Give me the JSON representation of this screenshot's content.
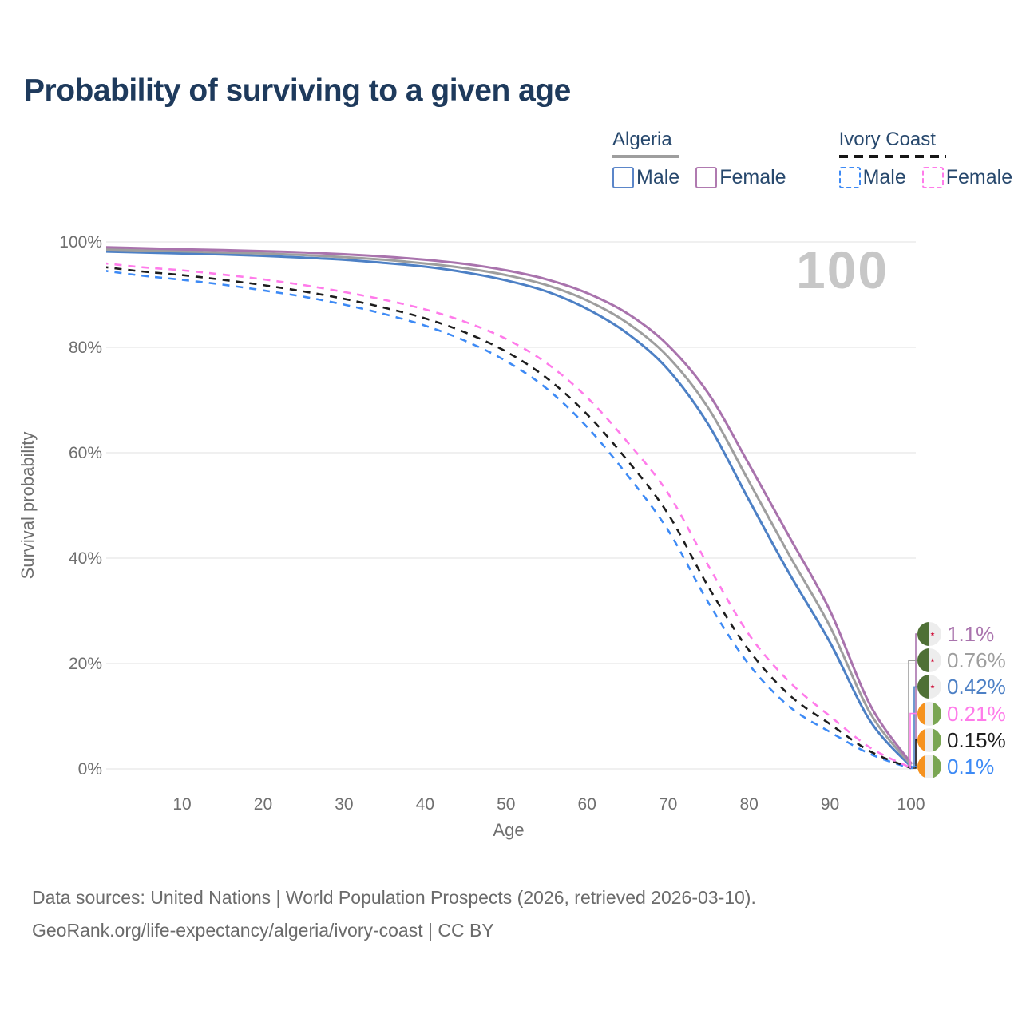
{
  "title": "Probability of surviving to a given age",
  "watermark": "100",
  "legend": {
    "groups": [
      {
        "label": "Algeria",
        "line_style": "solid",
        "items": [
          {
            "label": "Male",
            "color": "#4d80c5"
          },
          {
            "label": "Female",
            "color": "#a973ad"
          }
        ]
      },
      {
        "label": "Ivory Coast",
        "line_style": "dashed",
        "items": [
          {
            "label": "Male",
            "color": "#3d8af5"
          },
          {
            "label": "Female",
            "color": "#ff7bea"
          }
        ]
      }
    ]
  },
  "axes": {
    "y_title": "Survival probability",
    "x_title": "Age",
    "y_ticks": [
      {
        "label": "100%",
        "value": 100
      },
      {
        "label": "80%",
        "value": 80
      },
      {
        "label": "60%",
        "value": 60
      },
      {
        "label": "40%",
        "value": 40
      },
      {
        "label": "20%",
        "value": 20
      },
      {
        "label": "0%",
        "value": 0
      }
    ],
    "x_ticks": [
      {
        "label": "10",
        "value": 10
      },
      {
        "label": "20",
        "value": 20
      },
      {
        "label": "30",
        "value": 30
      },
      {
        "label": "40",
        "value": 40
      },
      {
        "label": "50",
        "value": 50
      },
      {
        "label": "60",
        "value": 60
      },
      {
        "label": "70",
        "value": 70
      },
      {
        "label": "80",
        "value": 80
      },
      {
        "label": "90",
        "value": 90
      },
      {
        "label": "100",
        "value": 100
      }
    ]
  },
  "chart_data": {
    "type": "line",
    "title": "Probability of surviving to a given age",
    "xlabel": "Age",
    "ylabel": "Survival probability",
    "xlim": [
      0,
      100
    ],
    "ylim": [
      0,
      100
    ],
    "grid": true,
    "legend_position": "top-right",
    "x": [
      0,
      5,
      10,
      15,
      20,
      25,
      30,
      35,
      40,
      45,
      50,
      55,
      60,
      65,
      70,
      75,
      80,
      85,
      90,
      95,
      100
    ],
    "series": [
      {
        "name": "Algeria Female",
        "slug": "algeria-female",
        "color": "#a973ad",
        "dash": "solid",
        "flag": "algeria",
        "end_label": "1.1%",
        "values": [
          99.0,
          98.8,
          98.6,
          98.45,
          98.25,
          98.0,
          97.65,
          97.2,
          96.6,
          95.8,
          94.6,
          92.9,
          90.3,
          86.4,
          80.4,
          71.2,
          57.8,
          44.0,
          30.0,
          12.0,
          1.1
        ]
      },
      {
        "name": "Algeria Both sexes",
        "slug": "algeria-both",
        "color": "#9e9e9e",
        "dash": "solid",
        "flag": "algeria",
        "end_label": "0.76%",
        "values": [
          98.6,
          98.4,
          98.2,
          98.0,
          97.8,
          97.5,
          97.1,
          96.6,
          95.9,
          95.0,
          93.7,
          91.8,
          88.9,
          84.6,
          78.2,
          68.4,
          54.5,
          40.5,
          27.0,
          10.5,
          0.76
        ]
      },
      {
        "name": "Algeria Male",
        "slug": "algeria-male",
        "color": "#4d80c5",
        "dash": "solid",
        "flag": "algeria",
        "end_label": "0.42%",
        "values": [
          98.2,
          98.0,
          97.8,
          97.6,
          97.35,
          97.0,
          96.6,
          96.0,
          95.3,
          94.2,
          92.7,
          90.6,
          87.3,
          82.6,
          75.8,
          65.3,
          51.0,
          37.0,
          24.0,
          9.0,
          0.42
        ]
      },
      {
        "name": "Ivory Coast Female",
        "slug": "ivory-coast-female",
        "color": "#ff7bea",
        "dash": "dashed",
        "flag": "ivory-coast",
        "end_label": "0.21%",
        "values": [
          96.0,
          95.2,
          94.6,
          93.8,
          92.9,
          91.8,
          90.5,
          89.0,
          87.2,
          84.8,
          81.6,
          77.0,
          70.5,
          62.0,
          52.3,
          38.5,
          25.5,
          16.5,
          10.0,
          4.0,
          0.21
        ]
      },
      {
        "name": "Ivory Coast Both sexes",
        "slug": "ivory-coast-both",
        "color": "#1d1d1d",
        "dash": "dashed",
        "flag": "ivory-coast",
        "end_label": "0.15%",
        "values": [
          95.3,
          94.4,
          93.7,
          92.8,
          91.8,
          90.6,
          89.2,
          87.5,
          85.5,
          82.8,
          79.2,
          74.2,
          67.3,
          58.5,
          48.4,
          34.5,
          22.5,
          14.0,
          8.5,
          3.3,
          0.15
        ]
      },
      {
        "name": "Ivory Coast Male",
        "slug": "ivory-coast-male",
        "color": "#3d8af5",
        "dash": "dashed",
        "flag": "ivory-coast",
        "end_label": "0.1%",
        "values": [
          94.6,
          93.6,
          92.8,
          91.9,
          90.8,
          89.6,
          88.1,
          86.3,
          84.1,
          81.2,
          77.4,
          72.2,
          64.9,
          55.7,
          45.3,
          31.5,
          19.8,
          11.8,
          7.0,
          2.8,
          0.1
        ]
      }
    ]
  },
  "footer": {
    "line1": "Data sources: United Nations | World Population Prospects (2026, retrieved 2026-03-10).",
    "line2": "GeoRank.org/life-expectancy/algeria/ivory-coast | CC BY"
  }
}
